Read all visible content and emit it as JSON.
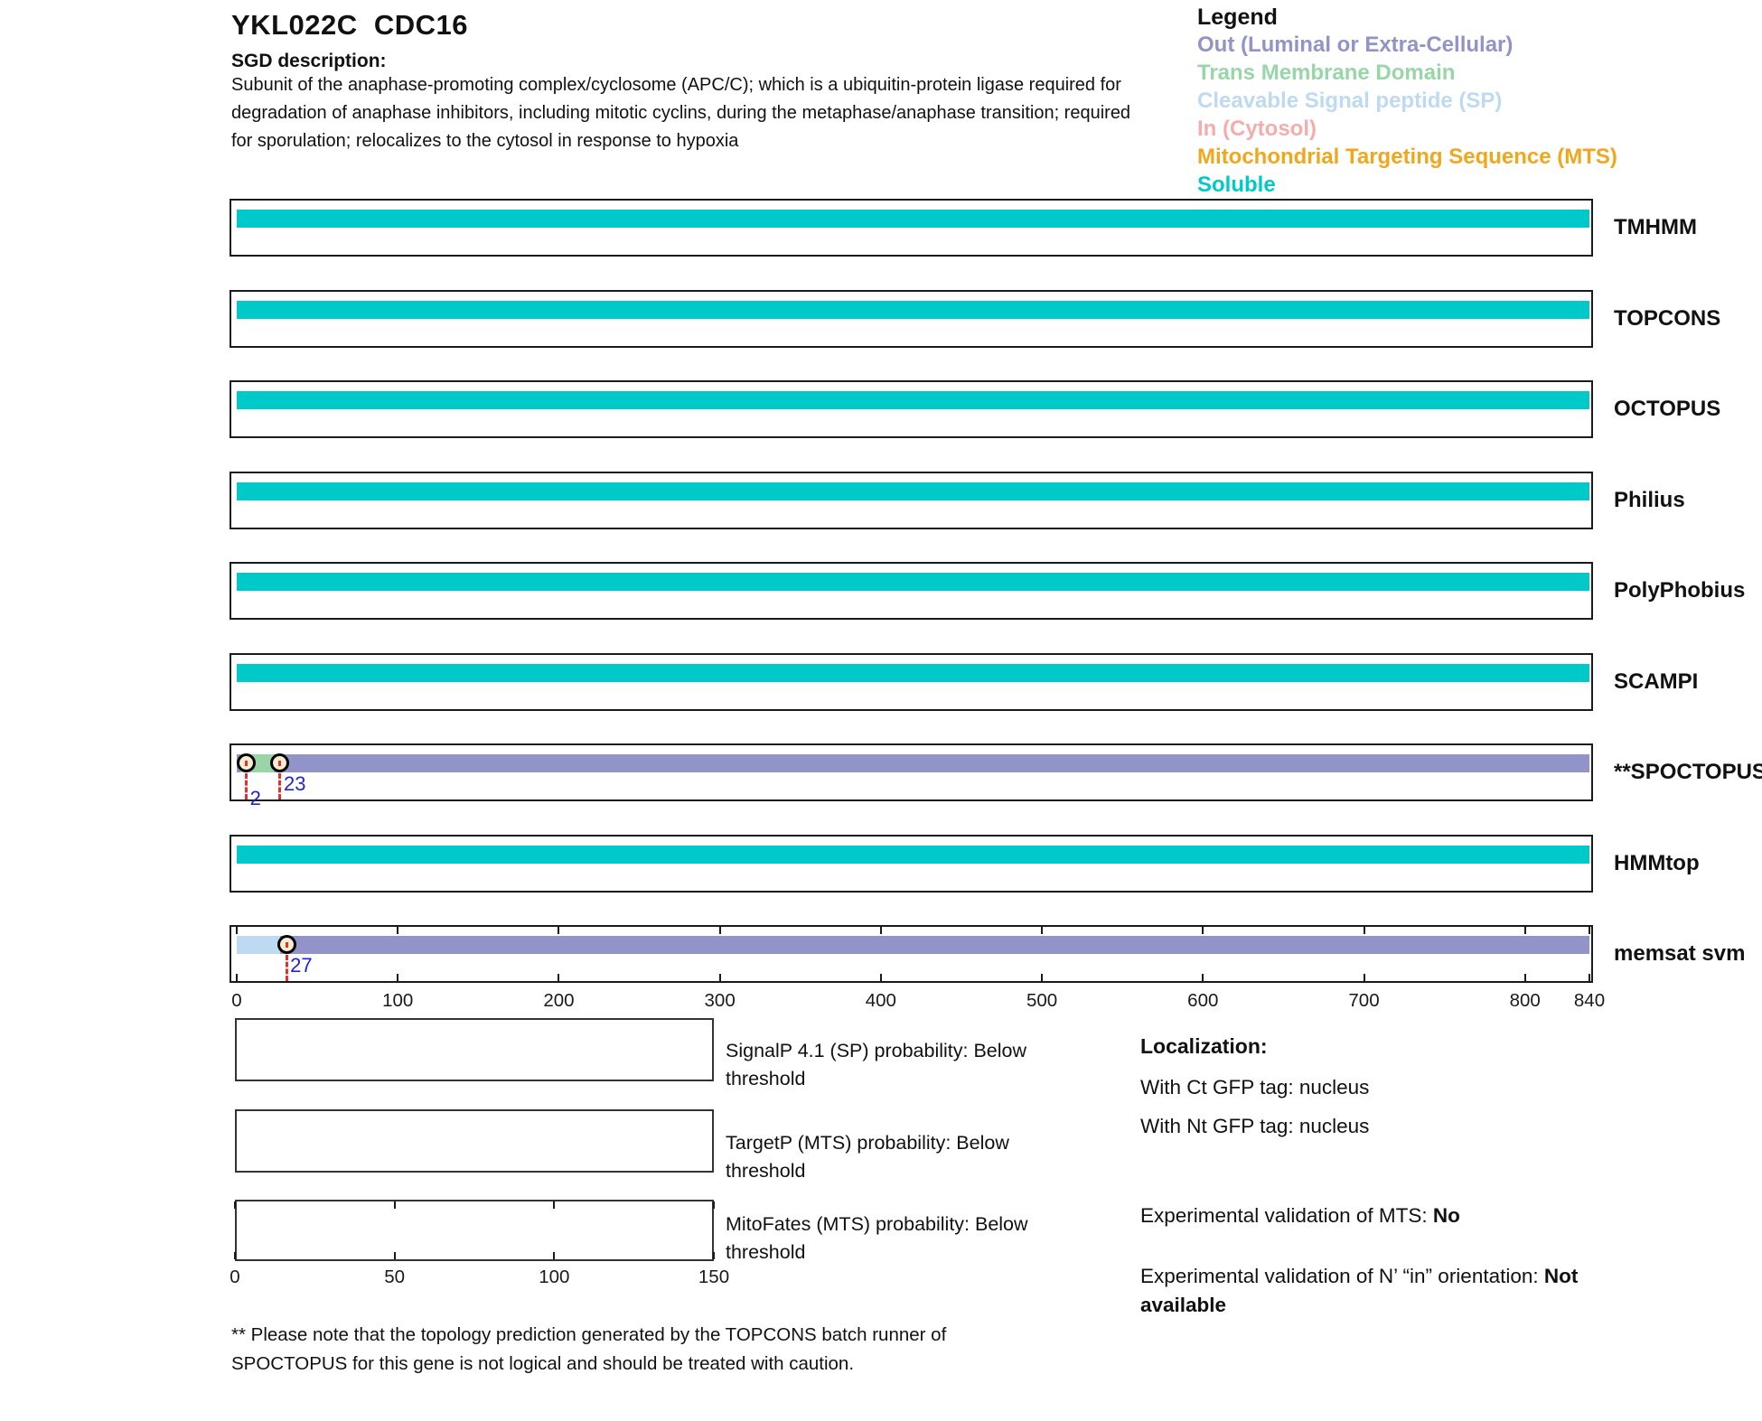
{
  "header": {
    "title": "YKL022C  CDC16",
    "sgd_label": "SGD description:",
    "sgd_description": "Subunit of the anaphase-promoting complex/cyclosome (APC/C); which is a ubiquitin-protein ligase required for degradation of anaphase inhibitors, including mitotic cyclins, during the metaphase/anaphase transition; required for sporulation; relocalizes to the cytosol in response to hypoxia"
  },
  "legend": {
    "title": "Legend",
    "items": [
      {
        "label": "Out (Luminal or Extra-Cellular)",
        "color_key": "out"
      },
      {
        "label": "Trans Membrane Domain",
        "color_key": "tm"
      },
      {
        "label": "Cleavable Signal peptide (SP)",
        "color_key": "sp"
      },
      {
        "label": "In (Cytosol)",
        "color_key": "in"
      },
      {
        "label": "Mitochondrial Targeting Sequence (MTS)",
        "color_key": "mts"
      },
      {
        "label": "Soluble",
        "color_key": "soluble"
      }
    ]
  },
  "colors": {
    "out": "#9193c9",
    "tm": "#98d6a8",
    "sp": "#bed9f2",
    "in": "#f3adaa",
    "mts": "#efa71e",
    "soluble": "#00c9c9",
    "boundary_line": "#e03232",
    "boundary_label": "#2323d6",
    "circle_fill": "#f8edd2"
  },
  "chart_data": {
    "type": "bar",
    "subtype": "horizontal-protein-topology-tracks",
    "xlim": [
      0,
      840
    ],
    "axis_ticks": [
      0,
      100,
      200,
      300,
      400,
      500,
      600,
      700,
      800,
      840
    ],
    "tracks": [
      {
        "label": "TMHMM",
        "segments": [
          {
            "start": 0,
            "end": 840,
            "type": "soluble"
          }
        ]
      },
      {
        "label": "TOPCONS",
        "segments": [
          {
            "start": 0,
            "end": 840,
            "type": "soluble"
          }
        ]
      },
      {
        "label": "OCTOPUS",
        "segments": [
          {
            "start": 0,
            "end": 840,
            "type": "soluble"
          }
        ]
      },
      {
        "label": "Philius",
        "segments": [
          {
            "start": 0,
            "end": 840,
            "type": "soluble"
          }
        ]
      },
      {
        "label": "PolyPhobius",
        "segments": [
          {
            "start": 0,
            "end": 840,
            "type": "soluble"
          }
        ]
      },
      {
        "label": "SCAMPI",
        "segments": [
          {
            "start": 0,
            "end": 840,
            "type": "soluble"
          }
        ]
      },
      {
        "label": "**SPOCTOPUS",
        "segments": [
          {
            "start": 0,
            "end": 2,
            "type": "out"
          },
          {
            "start": 2,
            "end": 23,
            "type": "tm"
          },
          {
            "start": 23,
            "end": 840,
            "type": "out"
          }
        ],
        "boundaries": [
          {
            "pos": 2,
            "label_row": 2
          },
          {
            "pos": 23,
            "label_row": 1
          }
        ]
      },
      {
        "label": "HMMtop",
        "segments": [
          {
            "start": 0,
            "end": 840,
            "type": "soluble"
          }
        ]
      },
      {
        "label": "memsat svm",
        "segments": [
          {
            "start": 0,
            "end": 27,
            "type": "sp"
          },
          {
            "start": 27,
            "end": 840,
            "type": "out"
          }
        ],
        "boundaries": [
          {
            "pos": 27,
            "label_row": 1
          }
        ],
        "show_ticks": true
      }
    ],
    "bottom_plots": [
      {
        "label": "SignalP 4.1 (SP) probability: Below threshold"
      },
      {
        "label": "TargetP (MTS) probability: Below threshold"
      },
      {
        "label": "MitoFates (MTS) probability: Below threshold",
        "xlim": [
          0,
          150
        ],
        "axis_ticks": [
          0,
          50,
          100,
          150
        ]
      }
    ]
  },
  "localization": {
    "title": "Localization:",
    "ct_gfp": "With Ct GFP tag: nucleus",
    "nt_gfp": "With Nt GFP tag: nucleus",
    "mts_label": "Experimental validation of MTS: ",
    "mts_value": "No",
    "orientation_label": "Experimental validation of N’ “in” orientation: ",
    "orientation_value": "Not available"
  },
  "footnote": "** Please note that the topology prediction generated by the TOPCONS batch runner of SPOCTOPUS for this gene is not logical and should be treated with caution."
}
